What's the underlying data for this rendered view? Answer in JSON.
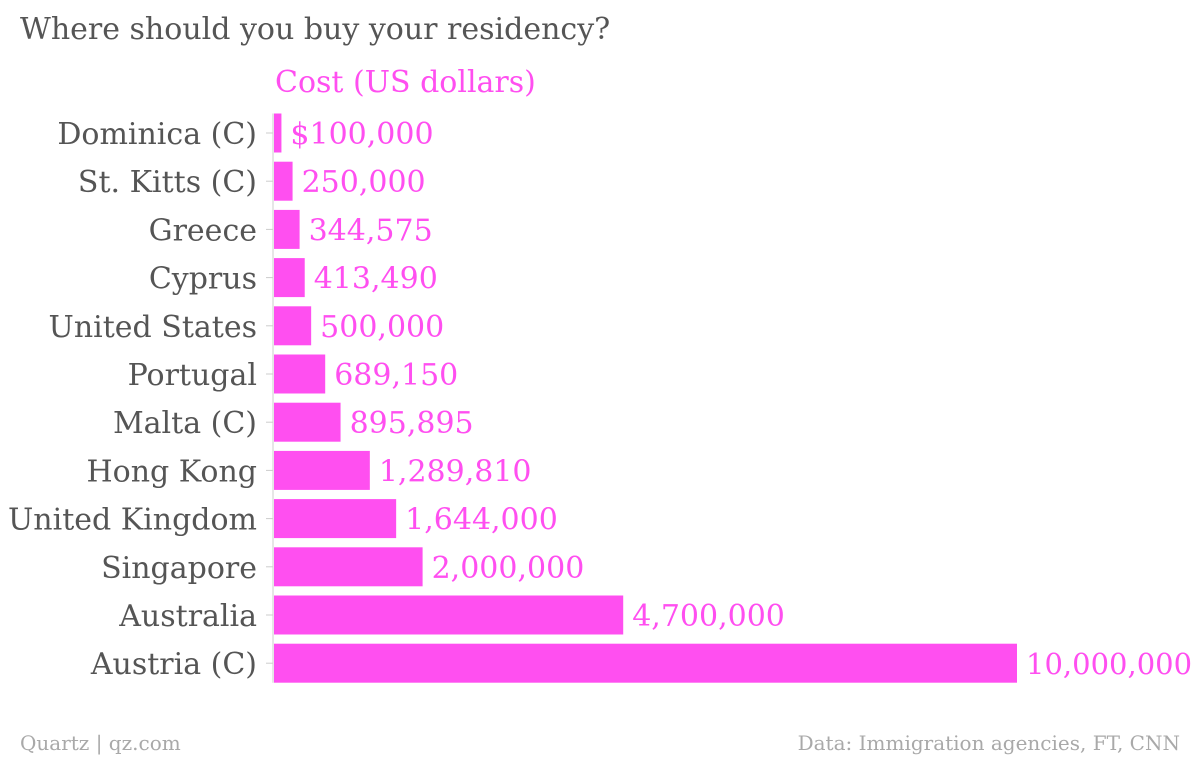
{
  "chart_data": {
    "type": "bar",
    "orientation": "horizontal",
    "title": "Where should you buy your residency?",
    "series": [
      {
        "name": "Cost (US dollars)",
        "values": [
          100000,
          250000,
          344575,
          413490,
          500000,
          689150,
          895895,
          1289810,
          1644000,
          2000000,
          4700000,
          10000000
        ],
        "labels": [
          "$100,000",
          "250,000",
          "344,575",
          "413,490",
          "500,000",
          "689,150",
          "895,895",
          "1,289,810",
          "1,644,000",
          "2,000,000",
          "4,700,000",
          "10,000,000"
        ]
      }
    ],
    "categories": [
      "Dominica (C)",
      "St. Kitts (C)",
      "Greece",
      "Cyprus",
      "United States",
      "Portugal",
      "Malta (C)",
      "Hong Kong",
      "United Kingdom",
      "Singapore",
      "Australia",
      "Austria (C)"
    ],
    "xlim": [
      0,
      10000000
    ],
    "grid": false,
    "colors": {
      "bar": "#ff4ff0",
      "series_label": "#ff4ff0",
      "category_label": "#555555",
      "title": "#555555",
      "footer": "#a9a9a9",
      "axis": "#cccccc"
    }
  },
  "footer": {
    "source_left": "Quartz | qz.com",
    "source_right": "Data: Immigration agencies, FT, CNN"
  }
}
